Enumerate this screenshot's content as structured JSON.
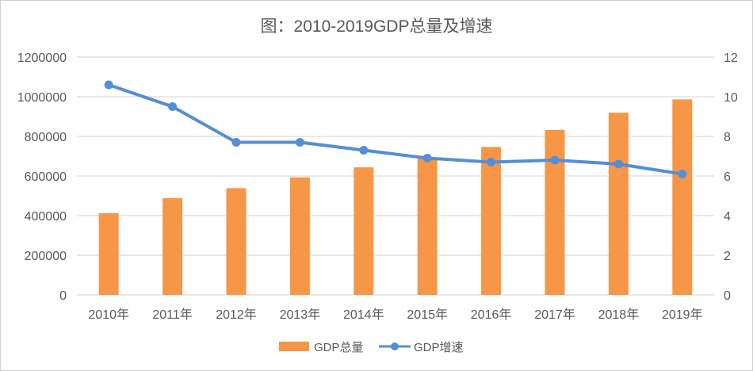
{
  "chart_data": {
    "type": "bar+line",
    "title": "图：2010-2019GDP总量及增速",
    "categories": [
      "2010年",
      "2011年",
      "2012年",
      "2013年",
      "2014年",
      "2015年",
      "2016年",
      "2017年",
      "2018年",
      "2019年"
    ],
    "series": [
      {
        "name": "GDP总量",
        "type": "bar",
        "axis": "left",
        "color": "#F79646",
        "values": [
          412119,
          487940,
          538580,
          592963,
          643563,
          688858,
          746395,
          832036,
          919281,
          986515
        ]
      },
      {
        "name": "GDP增速",
        "type": "line",
        "axis": "right",
        "color": "#558ED5",
        "values": [
          10.6,
          9.5,
          7.7,
          7.7,
          7.3,
          6.9,
          6.7,
          6.8,
          6.6,
          6.1
        ]
      }
    ],
    "y_left": {
      "min": 0,
      "max": 1200000,
      "ticks": [
        "0",
        "200000",
        "400000",
        "600000",
        "800000",
        "1000000",
        "1200000"
      ]
    },
    "y_right": {
      "min": 0,
      "max": 12,
      "ticks": [
        "0",
        "2",
        "4",
        "6",
        "8",
        "10",
        "12"
      ]
    },
    "grid": true,
    "legend": "bottom"
  }
}
